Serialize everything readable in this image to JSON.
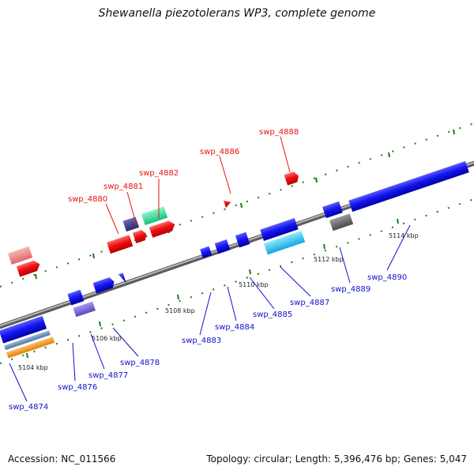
{
  "title": "Shewanella piezotolerans WP3, complete genome",
  "footer": {
    "accession": "Accession: NC_011566",
    "summary": "Topology: circular; Length: 5,396,476 bp; Genes: 5,047"
  },
  "colors": {
    "backbone": "#8c8c8c",
    "tick": "#1a7a1a",
    "upper_label": "#e8130f",
    "lower_label": "#1111cc"
  },
  "kbp_labels": [
    "5104 kbp",
    "5106 kbp",
    "5108 kbp",
    "5110 kbp",
    "5112 kbp",
    "5114 kbp"
  ],
  "gene_labels_upper": [
    "swp_4880",
    "swp_4881",
    "swp_4882",
    "swp_4886",
    "swp_4888"
  ],
  "gene_labels_lower": [
    "swp_4874",
    "swp_4876",
    "swp_4877",
    "swp_4878",
    "swp_4883",
    "swp_4884",
    "swp_4885",
    "swp_4887",
    "swp_4889",
    "swp_4890"
  ]
}
